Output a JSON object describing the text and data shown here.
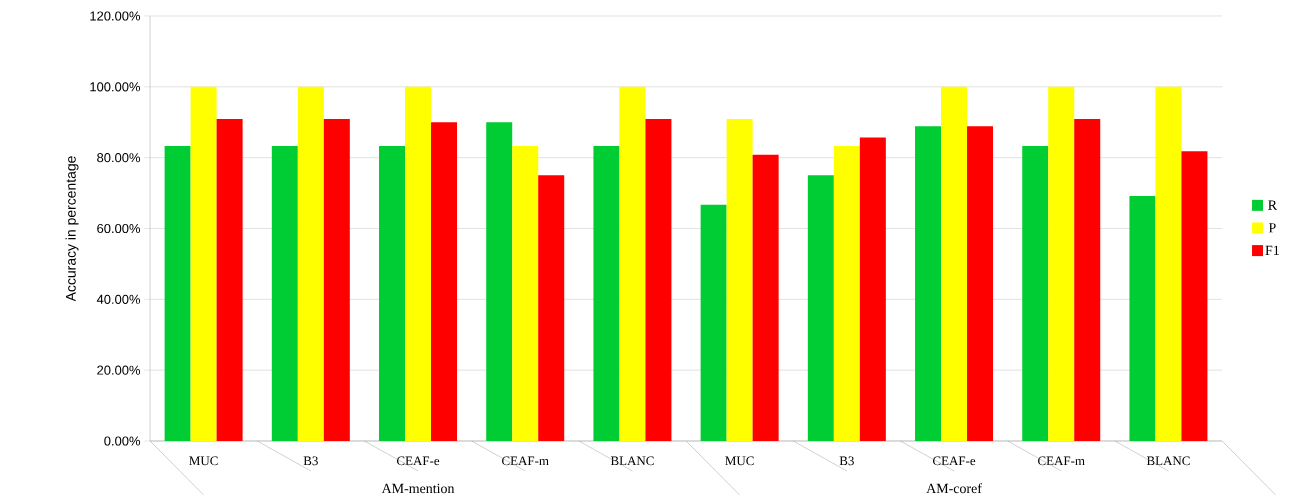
{
  "chart_data": {
    "type": "bar",
    "ylabel": "Accuracy in percentage",
    "categories": [
      "MUC",
      "B3",
      "CEAF-e",
      "CEAF-m",
      "BLANC",
      "MUC",
      "B3",
      "CEAF-e",
      "CEAF-m",
      "BLANC"
    ],
    "annotations": [
      "AM-mention",
      "AM-coref"
    ],
    "series": [
      {
        "name": "R",
        "color": "#00cc33",
        "values": [
          83.3,
          83.3,
          83.3,
          90.0,
          83.3,
          66.7,
          75.0,
          88.9,
          83.3,
          69.2
        ]
      },
      {
        "name": "P",
        "color": "#ffff00",
        "values": [
          100,
          100,
          100,
          83.3,
          100,
          90.9,
          83.3,
          100,
          100,
          100
        ]
      },
      {
        "name": "F1",
        "color": "#ff0000",
        "values": [
          90.9,
          90.9,
          90.0,
          75.0,
          90.9,
          80.8,
          85.7,
          88.9,
          90.9,
          81.8
        ]
      }
    ],
    "ylim": [
      0,
      120
    ],
    "yticks": [
      {
        "value": 0,
        "label": "0.00%"
      },
      {
        "value": 20,
        "label": "20.00%"
      },
      {
        "value": 40,
        "label": "40.00%"
      },
      {
        "value": 60,
        "label": "60.00%"
      },
      {
        "value": 80,
        "label": "80.00%"
      },
      {
        "value": 100,
        "label": "100.00%"
      },
      {
        "value": 120,
        "label": "120.00%"
      }
    ],
    "grid": "y",
    "legend": "right"
  }
}
